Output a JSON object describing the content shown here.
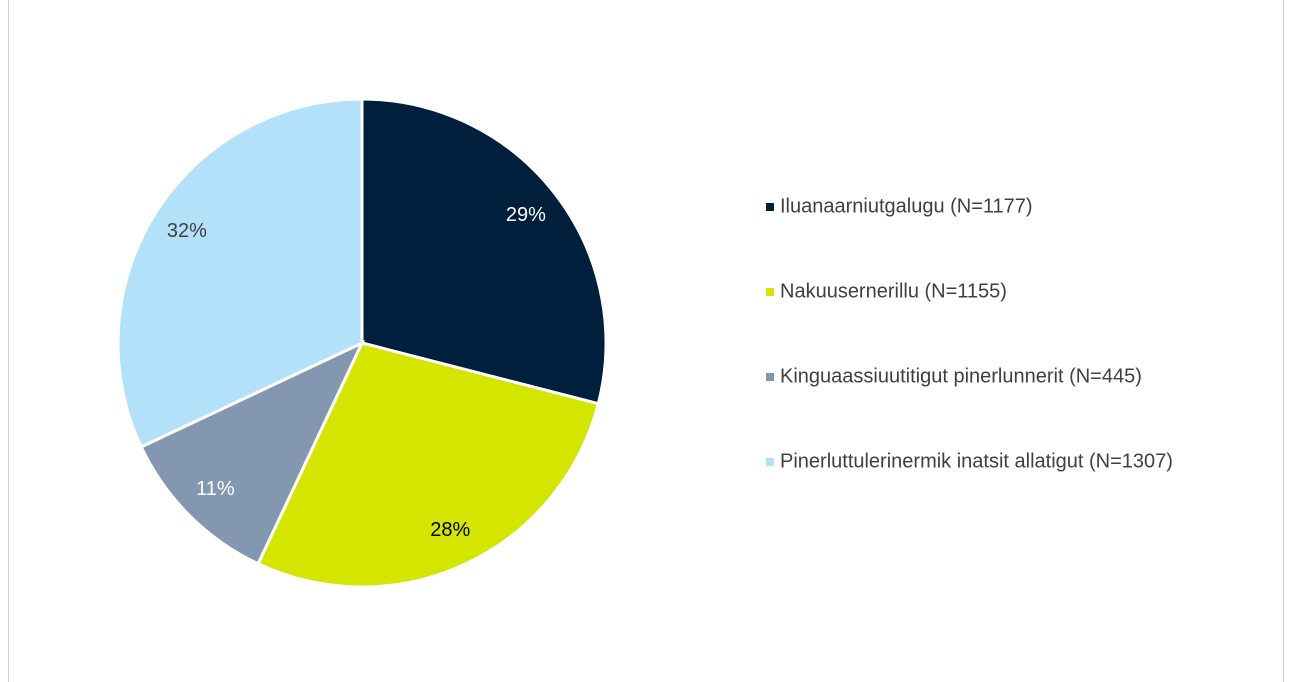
{
  "chart_data": {
    "type": "pie",
    "categories": [
      "Iluanaarniutgalugu (N=1177)",
      "Nakuusernerillu (N=1155)",
      "Kinguaassiuutitigut pinerlunnerit (N=445)",
      "Pinerluttulerinermik inatsit allatigut (N=1307)"
    ],
    "values": [
      29,
      28,
      11,
      32
    ],
    "value_labels": [
      "29%",
      "28%",
      "11%",
      "32%"
    ],
    "colors": [
      "#001f3d",
      "#d4e600",
      "#8497b0",
      "#b4e1fa"
    ],
    "label_colors": [
      "#ffffff",
      "#000000",
      "#ffffff",
      "#404040"
    ],
    "legend": "right"
  }
}
